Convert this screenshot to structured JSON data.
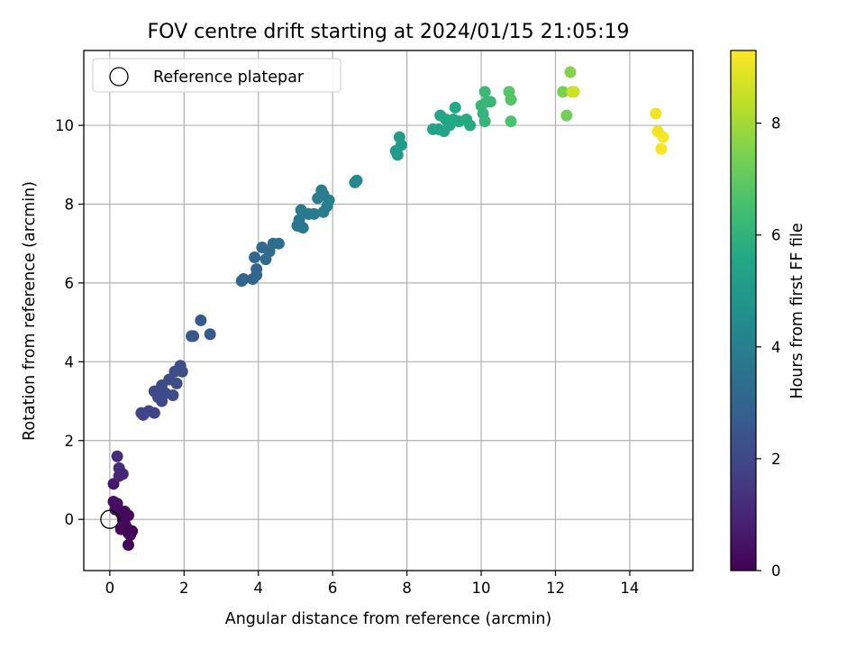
{
  "chart_data": {
    "type": "scatter",
    "title": "FOV centre drift starting at 2024/01/15 21:05:19",
    "xlabel": "Angular distance from reference (arcmin)",
    "ylabel": "Rotation from reference (arcmin)",
    "xlim": [
      -0.7,
      15.7
    ],
    "ylim": [
      -1.3,
      11.9
    ],
    "xticks": [
      0,
      2,
      4,
      6,
      8,
      10,
      12,
      14
    ],
    "yticks": [
      0,
      2,
      4,
      6,
      8,
      10
    ],
    "xtick_labels": [
      "0",
      "2",
      "4",
      "6",
      "8",
      "10",
      "12",
      "14"
    ],
    "ytick_labels": [
      "0",
      "2",
      "4",
      "6",
      "8",
      "10"
    ],
    "grid": true,
    "legend": {
      "placement": "top-left",
      "entries": [
        {
          "label": "Reference platepar",
          "marker": "hollow-circle",
          "color": "#000000"
        }
      ]
    },
    "reference_point": {
      "x": 0,
      "y": 0
    },
    "colorbar": {
      "label": "Hours from first FF file",
      "colormap": "viridis",
      "range": [
        0,
        9.3
      ],
      "ticks": [
        0,
        2,
        4,
        6,
        8
      ],
      "tick_labels": [
        "0",
        "2",
        "4",
        "6",
        "8"
      ]
    },
    "points": [
      {
        "x": 0.1,
        "y": 0.9,
        "c": 0.6
      },
      {
        "x": 0.2,
        "y": 1.6,
        "c": 1.2
      },
      {
        "x": 0.25,
        "y": 1.3,
        "c": 1.1
      },
      {
        "x": 0.25,
        "y": 1.1,
        "c": 1.0
      },
      {
        "x": 0.35,
        "y": 1.15,
        "c": 1.0
      },
      {
        "x": 0.1,
        "y": 0.45,
        "c": 0.4
      },
      {
        "x": 0.2,
        "y": 0.4,
        "c": 0.4
      },
      {
        "x": 0.15,
        "y": 0.25,
        "c": 0.3
      },
      {
        "x": 0.3,
        "y": 0.15,
        "c": 0.3
      },
      {
        "x": 0.35,
        "y": 0.0,
        "c": 0.2
      },
      {
        "x": 0.4,
        "y": 0.2,
        "c": 0.2
      },
      {
        "x": 0.5,
        "y": 0.1,
        "c": 0.2
      },
      {
        "x": 0.3,
        "y": -0.25,
        "c": 0.2
      },
      {
        "x": 0.45,
        "y": -0.2,
        "c": 0.1
      },
      {
        "x": 0.5,
        "y": -0.35,
        "c": 0.1
      },
      {
        "x": 0.55,
        "y": -0.4,
        "c": 0.1
      },
      {
        "x": 0.6,
        "y": -0.3,
        "c": 0.1
      },
      {
        "x": 0.4,
        "y": -0.1,
        "c": 0.2
      },
      {
        "x": 0.5,
        "y": -0.65,
        "c": 0.1
      },
      {
        "x": 0.85,
        "y": 2.7,
        "c": 1.9
      },
      {
        "x": 0.9,
        "y": 2.65,
        "c": 1.9
      },
      {
        "x": 1.05,
        "y": 2.75,
        "c": 1.9
      },
      {
        "x": 1.2,
        "y": 2.7,
        "c": 1.9
      },
      {
        "x": 1.2,
        "y": 3.25,
        "c": 2.0
      },
      {
        "x": 1.3,
        "y": 3.1,
        "c": 2.0
      },
      {
        "x": 1.4,
        "y": 3.0,
        "c": 2.0
      },
      {
        "x": 1.4,
        "y": 3.4,
        "c": 2.1
      },
      {
        "x": 1.5,
        "y": 3.2,
        "c": 2.1
      },
      {
        "x": 1.6,
        "y": 3.55,
        "c": 2.1
      },
      {
        "x": 1.7,
        "y": 3.15,
        "c": 2.1
      },
      {
        "x": 1.75,
        "y": 3.75,
        "c": 2.2
      },
      {
        "x": 1.8,
        "y": 3.45,
        "c": 2.2
      },
      {
        "x": 1.9,
        "y": 3.9,
        "c": 2.2
      },
      {
        "x": 1.95,
        "y": 3.75,
        "c": 2.2
      },
      {
        "x": 2.2,
        "y": 4.65,
        "c": 2.5
      },
      {
        "x": 2.25,
        "y": 4.65,
        "c": 2.5
      },
      {
        "x": 2.45,
        "y": 5.05,
        "c": 2.6
      },
      {
        "x": 2.7,
        "y": 4.7,
        "c": 2.6
      },
      {
        "x": 3.55,
        "y": 6.05,
        "c": 3.0
      },
      {
        "x": 3.6,
        "y": 6.1,
        "c": 3.0
      },
      {
        "x": 3.85,
        "y": 6.1,
        "c": 3.1
      },
      {
        "x": 3.9,
        "y": 6.65,
        "c": 3.1
      },
      {
        "x": 3.95,
        "y": 6.35,
        "c": 3.1
      },
      {
        "x": 3.95,
        "y": 6.2,
        "c": 3.1
      },
      {
        "x": 4.1,
        "y": 6.9,
        "c": 3.2
      },
      {
        "x": 4.2,
        "y": 6.6,
        "c": 3.2
      },
      {
        "x": 4.3,
        "y": 6.8,
        "c": 3.3
      },
      {
        "x": 4.4,
        "y": 7.0,
        "c": 3.3
      },
      {
        "x": 4.55,
        "y": 7.0,
        "c": 3.3
      },
      {
        "x": 5.05,
        "y": 7.45,
        "c": 3.7
      },
      {
        "x": 5.1,
        "y": 7.6,
        "c": 3.7
      },
      {
        "x": 5.15,
        "y": 7.85,
        "c": 3.8
      },
      {
        "x": 5.2,
        "y": 7.4,
        "c": 3.7
      },
      {
        "x": 5.35,
        "y": 7.75,
        "c": 3.8
      },
      {
        "x": 5.5,
        "y": 7.75,
        "c": 3.8
      },
      {
        "x": 5.6,
        "y": 8.15,
        "c": 3.9
      },
      {
        "x": 5.7,
        "y": 8.35,
        "c": 3.9
      },
      {
        "x": 5.75,
        "y": 7.8,
        "c": 3.9
      },
      {
        "x": 5.85,
        "y": 7.95,
        "c": 3.9
      },
      {
        "x": 5.9,
        "y": 8.1,
        "c": 4.0
      },
      {
        "x": 5.75,
        "y": 8.25,
        "c": 3.9
      },
      {
        "x": 6.6,
        "y": 8.55,
        "c": 4.3
      },
      {
        "x": 6.65,
        "y": 8.6,
        "c": 4.3
      },
      {
        "x": 7.7,
        "y": 9.35,
        "c": 5.0
      },
      {
        "x": 7.75,
        "y": 9.25,
        "c": 5.0
      },
      {
        "x": 7.8,
        "y": 9.7,
        "c": 5.1
      },
      {
        "x": 7.85,
        "y": 9.5,
        "c": 5.1
      },
      {
        "x": 8.7,
        "y": 9.9,
        "c": 5.4
      },
      {
        "x": 8.85,
        "y": 9.9,
        "c": 5.4
      },
      {
        "x": 8.9,
        "y": 10.25,
        "c": 5.5
      },
      {
        "x": 9.0,
        "y": 9.85,
        "c": 5.4
      },
      {
        "x": 9.05,
        "y": 10.15,
        "c": 5.5
      },
      {
        "x": 9.15,
        "y": 10.0,
        "c": 5.5
      },
      {
        "x": 9.25,
        "y": 10.15,
        "c": 5.6
      },
      {
        "x": 9.3,
        "y": 10.45,
        "c": 5.6
      },
      {
        "x": 9.4,
        "y": 10.1,
        "c": 5.6
      },
      {
        "x": 9.6,
        "y": 10.15,
        "c": 5.7
      },
      {
        "x": 9.7,
        "y": 10.0,
        "c": 5.7
      },
      {
        "x": 10.0,
        "y": 10.5,
        "c": 6.1
      },
      {
        "x": 10.05,
        "y": 10.3,
        "c": 6.1
      },
      {
        "x": 10.1,
        "y": 10.85,
        "c": 6.3
      },
      {
        "x": 10.1,
        "y": 10.1,
        "c": 6.1
      },
      {
        "x": 10.15,
        "y": 10.6,
        "c": 6.2
      },
      {
        "x": 10.25,
        "y": 10.6,
        "c": 6.2
      },
      {
        "x": 10.75,
        "y": 10.85,
        "c": 6.8
      },
      {
        "x": 10.8,
        "y": 10.65,
        "c": 6.8
      },
      {
        "x": 10.8,
        "y": 10.1,
        "c": 6.6
      },
      {
        "x": 12.2,
        "y": 10.85,
        "c": 7.4
      },
      {
        "x": 12.3,
        "y": 10.25,
        "c": 7.3
      },
      {
        "x": 12.4,
        "y": 11.35,
        "c": 7.6
      },
      {
        "x": 12.45,
        "y": 10.85,
        "c": 8.5
      },
      {
        "x": 12.5,
        "y": 10.85,
        "c": 8.6
      },
      {
        "x": 14.7,
        "y": 10.3,
        "c": 9.1
      },
      {
        "x": 14.75,
        "y": 9.85,
        "c": 9.1
      },
      {
        "x": 14.85,
        "y": 9.4,
        "c": 9.2
      },
      {
        "x": 14.9,
        "y": 9.7,
        "c": 9.2
      }
    ]
  }
}
